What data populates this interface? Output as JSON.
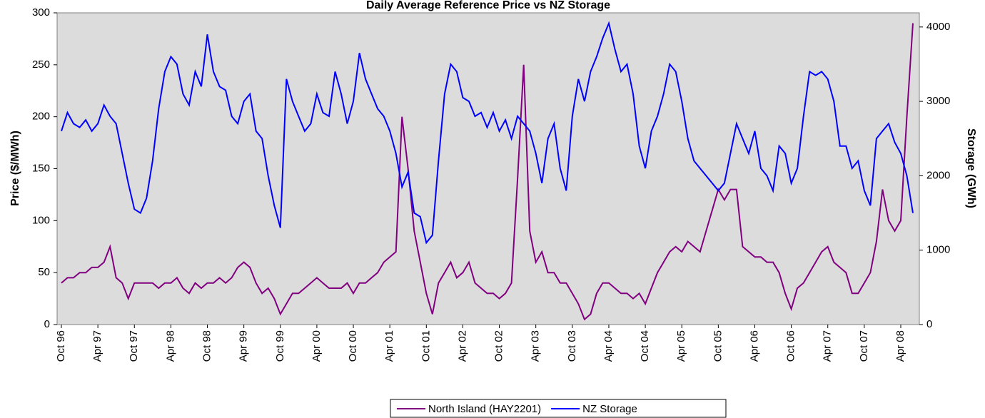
{
  "chart_data": {
    "type": "line",
    "title": "Daily Average Reference Price vs NZ Storage",
    "y_label": "Price ($/MWh)",
    "y2_label": "Storage (GWh)",
    "categories": [
      "Oct 96",
      null,
      null,
      null,
      null,
      null,
      "Apr 97",
      null,
      null,
      null,
      null,
      null,
      "Oct 97",
      null,
      null,
      null,
      null,
      null,
      "Apr 98",
      null,
      null,
      null,
      null,
      null,
      "Oct 98",
      null,
      null,
      null,
      null,
      null,
      "Apr 99",
      null,
      null,
      null,
      null,
      null,
      "Oct 99",
      null,
      null,
      null,
      null,
      null,
      "Apr 00",
      null,
      null,
      null,
      null,
      null,
      "Oct 00",
      null,
      null,
      null,
      null,
      null,
      "Apr 01",
      null,
      null,
      null,
      null,
      null,
      "Oct 01",
      null,
      null,
      null,
      null,
      null,
      "Apr 02",
      null,
      null,
      null,
      null,
      null,
      "Oct 02",
      null,
      null,
      null,
      null,
      null,
      "Apr 03",
      null,
      null,
      null,
      null,
      null,
      "Oct 03",
      null,
      null,
      null,
      null,
      null,
      "Apr 04",
      null,
      null,
      null,
      null,
      null,
      "Oct 04",
      null,
      null,
      null,
      null,
      null,
      "Apr 05",
      null,
      null,
      null,
      null,
      null,
      "Oct 05",
      null,
      null,
      null,
      null,
      null,
      "Apr 06",
      null,
      null,
      null,
      null,
      null,
      "Oct 06",
      null,
      null,
      null,
      null,
      null,
      "Apr 07",
      null,
      null,
      null,
      null,
      null,
      "Oct 07",
      null,
      null,
      null,
      null,
      null,
      "Apr 08",
      null,
      null
    ],
    "series": [
      {
        "name": "North Island (HAY2201)",
        "color": "#800080",
        "axis": "y",
        "values": [
          40,
          45,
          45,
          50,
          50,
          55,
          55,
          60,
          75,
          45,
          40,
          25,
          40,
          40,
          40,
          40,
          35,
          40,
          40,
          45,
          35,
          30,
          40,
          35,
          40,
          40,
          45,
          40,
          45,
          55,
          60,
          55,
          40,
          30,
          35,
          25,
          10,
          20,
          30,
          30,
          35,
          40,
          45,
          40,
          35,
          35,
          35,
          40,
          30,
          40,
          40,
          45,
          50,
          60,
          65,
          70,
          200,
          150,
          90,
          60,
          30,
          10,
          40,
          50,
          60,
          45,
          50,
          60,
          40,
          35,
          30,
          30,
          25,
          30,
          40,
          140,
          250,
          90,
          60,
          70,
          50,
          50,
          40,
          40,
          30,
          20,
          5,
          10,
          30,
          40,
          40,
          35,
          30,
          30,
          25,
          30,
          20,
          35,
          50,
          60,
          70,
          75,
          70,
          80,
          75,
          70,
          90,
          110,
          130,
          120,
          130,
          130,
          75,
          70,
          65,
          65,
          60,
          60,
          50,
          30,
          15,
          35,
          40,
          50,
          60,
          70,
          75,
          60,
          55,
          50,
          30,
          30,
          40,
          50,
          80,
          130,
          100,
          90,
          100,
          200,
          290
        ]
      },
      {
        "name": "NZ Storage",
        "color": "#0000ff",
        "axis": "y2",
        "values": [
          2600,
          2850,
          2700,
          2650,
          2750,
          2600,
          2700,
          2950,
          2800,
          2700,
          2300,
          1900,
          1550,
          1500,
          1700,
          2200,
          2900,
          3400,
          3600,
          3500,
          3100,
          2950,
          3400,
          3200,
          3900,
          3400,
          3200,
          3150,
          2800,
          2700,
          3000,
          3100,
          2600,
          2500,
          2000,
          1600,
          1300,
          3300,
          3000,
          2800,
          2600,
          2700,
          3100,
          2850,
          2800,
          3400,
          3100,
          2700,
          3000,
          3650,
          3300,
          3100,
          2900,
          2800,
          2600,
          2300,
          1850,
          2050,
          1500,
          1450,
          1100,
          1200,
          2200,
          3100,
          3500,
          3400,
          3050,
          3000,
          2800,
          2850,
          2650,
          2850,
          2600,
          2750,
          2500,
          2800,
          2700,
          2600,
          2300,
          1900,
          2500,
          2700,
          2100,
          1800,
          2800,
          3300,
          3000,
          3400,
          3600,
          3850,
          4050,
          3700,
          3400,
          3500,
          3100,
          2400,
          2100,
          2600,
          2800,
          3100,
          3500,
          3400,
          3000,
          2500,
          2200,
          2100,
          2000,
          1900,
          1800,
          1900,
          2300,
          2700,
          2500,
          2300,
          2600,
          2100,
          2000,
          1800,
          2400,
          2300,
          1900,
          2100,
          2800,
          3400,
          3350,
          3400,
          3300,
          3000,
          2400,
          2400,
          2100,
          2200,
          1800,
          1600,
          2500,
          2600,
          2700,
          2450,
          2300,
          2000,
          1500
        ]
      }
    ],
    "ylim": [
      0,
      300
    ],
    "yticks": [
      0,
      50,
      100,
      150,
      200,
      250,
      300
    ],
    "y2lim": [
      0,
      4190
    ],
    "y2ticks": [
      0,
      1000,
      2000,
      3000,
      4000
    ],
    "grid": false,
    "legend": "bottom"
  }
}
